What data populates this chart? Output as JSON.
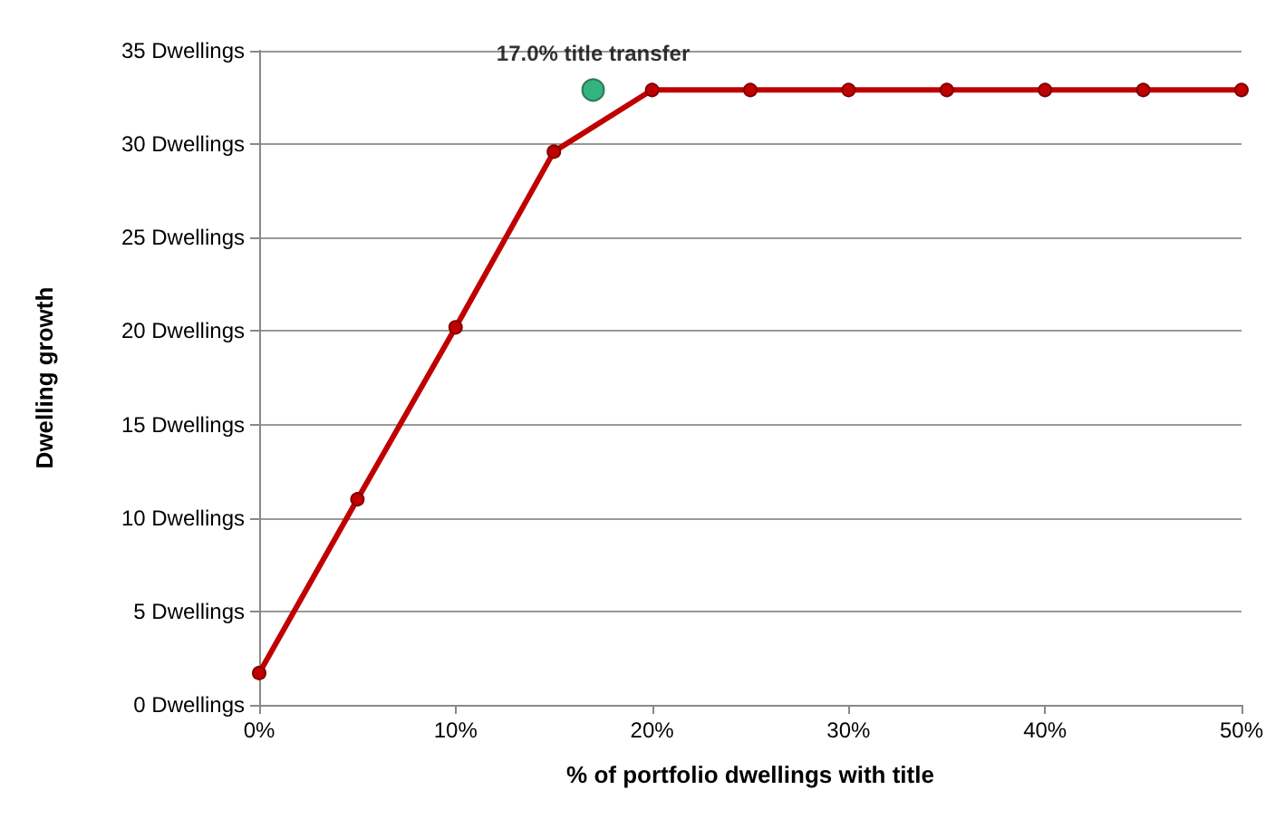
{
  "chart_data": {
    "type": "line",
    "xlabel": "% of portfolio dwellings with title",
    "ylabel": "Dwelling growth",
    "x": [
      0,
      5,
      10,
      15,
      20,
      25,
      30,
      35,
      40,
      45,
      50
    ],
    "series": [
      {
        "color": "#c00000",
        "values": [
          1.7,
          11,
          20.2,
          29.6,
          32.9,
          32.9,
          32.9,
          32.9,
          32.9,
          32.9,
          32.9
        ]
      },
      {
        "type": "scatter",
        "color": "#00a060",
        "x": [
          17
        ],
        "values": [
          32.9
        ]
      }
    ],
    "xlim": [
      0,
      50
    ],
    "xticks": [
      {
        "value": 0,
        "label": "0%"
      },
      {
        "value": 10,
        "label": "10%"
      },
      {
        "value": 20,
        "label": "20%"
      },
      {
        "value": 30,
        "label": "30%"
      },
      {
        "value": 40,
        "label": "40%"
      },
      {
        "value": 50,
        "label": "50%"
      }
    ],
    "ylim": [
      0,
      35
    ],
    "yticks": [
      {
        "value": 0,
        "label": "0 Dwellings"
      },
      {
        "value": 5,
        "label": "5 Dwellings"
      },
      {
        "value": 10,
        "label": "10 Dwellings"
      },
      {
        "value": 15,
        "label": "15 Dwellings"
      },
      {
        "value": 20,
        "label": "20 Dwellings"
      },
      {
        "value": 25,
        "label": "25 Dwellings"
      },
      {
        "value": 30,
        "label": "30 Dwellings"
      },
      {
        "value": 35,
        "label": "35 Dwellings"
      }
    ],
    "annotations": [
      {
        "text": "17.0% title transfer",
        "x": 17,
        "y": 32.9
      }
    ],
    "grid": "y",
    "marker": "circle",
    "line_style": "solid"
  }
}
